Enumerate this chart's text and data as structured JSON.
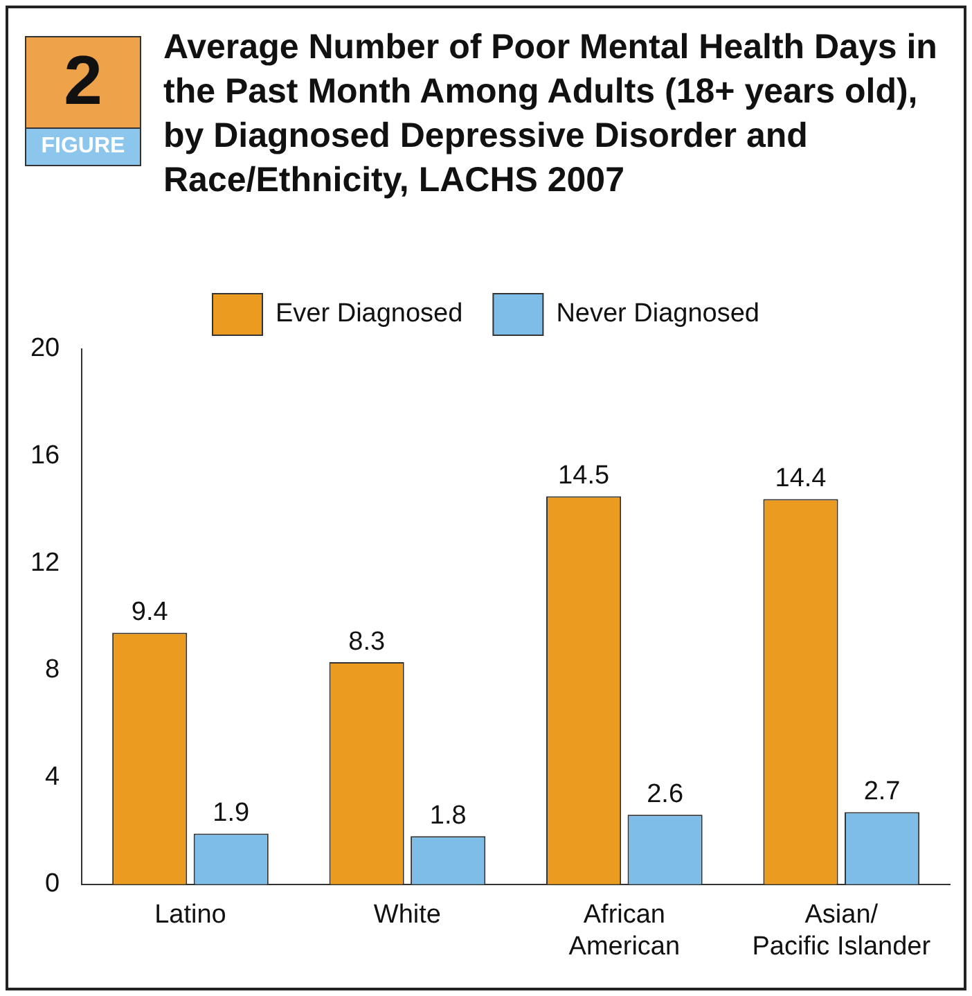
{
  "chart_data": {
    "type": "bar",
    "title": "Average Number of Poor Mental Health Days in the Past Month Among Adults (18+ years old), by Diagnosed Depressive Disorder and Race/Ethnicity, LACHS 2007",
    "annotations": [
      "2",
      "FIGURE"
    ],
    "categories": [
      "Latino",
      "White",
      "African\nAmerican",
      "Asian/\nPacific Islander"
    ],
    "series": [
      {
        "name": "Ever Diagnosed",
        "color": "#eb9b1f",
        "values": [
          9.4,
          8.3,
          14.5,
          14.4
        ]
      },
      {
        "name": "Never Diagnosed",
        "color": "#7dbde8",
        "values": [
          1.9,
          1.8,
          2.6,
          2.7
        ]
      }
    ],
    "ylim": [
      0,
      20
    ],
    "yticks": [
      0,
      4,
      8,
      12,
      16,
      20
    ],
    "legend": "top",
    "data_labels": true
  }
}
